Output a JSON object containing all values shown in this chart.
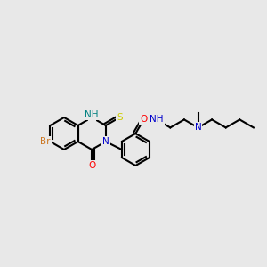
{
  "bg_color": "#e8e8e8",
  "bond_color": "#000000",
  "atom_colors": {
    "Br": "#cc7722",
    "N": "#0000cc",
    "O": "#ff0000",
    "S": "#cccc00",
    "H": "#008080",
    "C": "#000000"
  },
  "lw": 1.5,
  "lw2": 3.0
}
